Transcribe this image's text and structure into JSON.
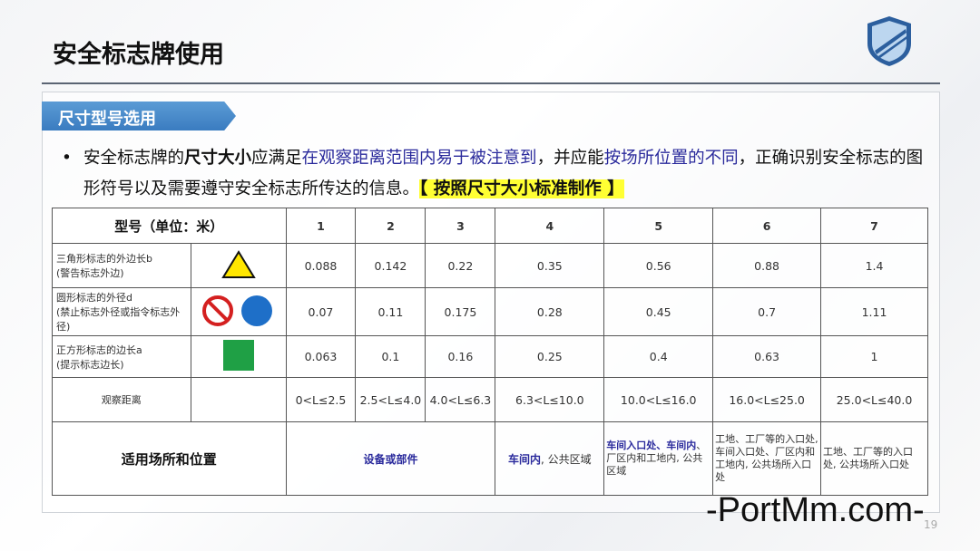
{
  "title": "安全标志牌使用",
  "section_tag": "尺寸型号选用",
  "bullet": {
    "p1": "安全标志牌的",
    "p2": "尺寸大小",
    "p3": "应满足",
    "p4": "在观察距离范围内易于被注意到",
    "p5": "，并应能",
    "p6": "按场所位置的不同",
    "p7": "，正确识别安全标志的图形符号以及需要遵守安全标志所传达的信息。",
    "p8": "【 按照尺寸大小标准制作 】"
  },
  "table": {
    "header": "型号（单位：米）",
    "models": [
      "1",
      "2",
      "3",
      "4",
      "5",
      "6",
      "7"
    ],
    "rows": [
      {
        "label": "三角形标志的外边长b",
        "sub": "(警告标志外边)",
        "icon": "warning-triangle-icon",
        "values": [
          "0.088",
          "0.142",
          "0.22",
          "0.35",
          "0.56",
          "0.88",
          "1.4"
        ]
      },
      {
        "label": "圆形标志的外径d",
        "sub": "(禁止标志外径或指令标志外径)",
        "icon": "prohibition-and-mandatory-circle-icons",
        "values": [
          "0.07",
          "0.11",
          "0.175",
          "0.28",
          "0.45",
          "0.7",
          "1.11"
        ]
      },
      {
        "label": "正方形标志的边长a",
        "sub": "(提示标志边长)",
        "icon": "green-square-icon",
        "values": [
          "0.063",
          "0.1",
          "0.16",
          "0.25",
          "0.4",
          "0.63",
          "1"
        ]
      }
    ],
    "distance_label": "观察距离",
    "distances": [
      "0<L≤2.5",
      "2.5<L≤4.0",
      "4.0<L≤6.3",
      "6.3<L≤10.0",
      "10.0<L≤16.0",
      "16.0<L≤25.0",
      "25.0<L≤40.0"
    ],
    "place_label": "适用场所和位置",
    "places": {
      "c123": "设备或部件",
      "c4a": "车间内",
      "c4b": ", 公共区域",
      "c5a": "车间入口处、车间内",
      "c5b": "、厂区内和工地内, 公共区域",
      "c6": "工地、工厂等的入口处, 车间入口处、厂区内和工地内, 公共场所入口处",
      "c7": "工地、工厂等的入口处, 公共场所入口处"
    }
  },
  "watermark": "-PortMm.com-",
  "page_number": "19",
  "colors": {
    "accent": "#3a7cc0",
    "highlight": "#ffff33",
    "emphasis": "#2a2a9c"
  }
}
